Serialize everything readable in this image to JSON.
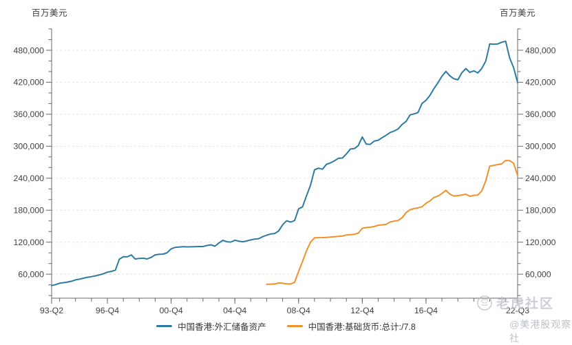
{
  "chart_data": {
    "type": "line",
    "title": "",
    "y_unit": "百万美元",
    "grid": "horizontal-dashed",
    "legend_position": "bottom-center",
    "y_axis": {
      "min": 15000,
      "max": 520000,
      "major_ticks": [
        60000,
        120000,
        180000,
        240000,
        300000,
        360000,
        420000,
        480000
      ],
      "minor_tick_step": 20000,
      "tick_format": "comma"
    },
    "x_axis": {
      "total_quarters": 117,
      "minor_tick_every": 4,
      "minor_tick_offset": 2,
      "tick_labels": [
        {
          "label": "93-Q2",
          "q": 0
        },
        {
          "label": "96-Q4",
          "q": 14
        },
        {
          "label": "00-Q4",
          "q": 30
        },
        {
          "label": "04-Q4",
          "q": 46
        },
        {
          "label": "08-Q4",
          "q": 62
        },
        {
          "label": "12-Q4",
          "q": 78
        },
        {
          "label": "16-Q4",
          "q": 94
        },
        {
          "label": "22-Q3",
          "q": 117
        }
      ]
    },
    "series": [
      {
        "name": "中国香港:外汇储备资产",
        "color": "#2a7aa1",
        "start_q": 0,
        "values": [
          38600,
          40400,
          43000,
          44100,
          45200,
          46800,
          49300,
          50700,
          52500,
          54200,
          55400,
          56900,
          58600,
          60700,
          63800,
          65300,
          67600,
          88100,
          92800,
          92500,
          96200,
          88400,
          89600,
          89900,
          88600,
          91600,
          96200,
          97300,
          97600,
          100300,
          107500,
          110200,
          110900,
          111500,
          111200,
          111300,
          111600,
          111900,
          111900,
          113800,
          115100,
          112500,
          118400,
          123500,
          120800,
          120300,
          123600,
          121900,
          120800,
          122300,
          124300,
          125800,
          126600,
          130400,
          133200,
          135400,
          136300,
          141000,
          152700,
          160200,
          157700,
          160600,
          182500,
          186300,
          207000,
          226800,
          255800,
          258800,
          256800,
          266100,
          268700,
          272600,
          277400,
          277800,
          285400,
          294700,
          295500,
          301200,
          317300,
          304000,
          303500,
          309600,
          311200,
          316200,
          320700,
          325800,
          328500,
          332500,
          340800,
          346500,
          358800,
          360800,
          363200,
          380200,
          386200,
          395500,
          408200,
          419000,
          431400,
          440300,
          431900,
          426500,
          424600,
          437900,
          445600,
          438500,
          441300,
          437500,
          445900,
          459700,
          491800,
          491200,
          491900,
          495100,
          496900,
          465700,
          447200,
          419200
        ]
      },
      {
        "name": "中国香港:基础货币:总计:/7.8",
        "color": "#f39027",
        "start_q": 54,
        "values": [
          41000,
          41300,
          41600,
          43500,
          42900,
          42000,
          41500,
          44900,
          65000,
          84000,
          104000,
          120000,
          128300,
          128500,
          128600,
          129000,
          129500,
          130200,
          130800,
          131500,
          133600,
          134200,
          134800,
          137000,
          146000,
          147500,
          148000,
          149500,
          151800,
          152500,
          153500,
          158000,
          159500,
          160500,
          166000,
          175500,
          181000,
          183000,
          184500,
          186500,
          193000,
          197500,
          204000,
          206500,
          211500,
          217300,
          210000,
          206500,
          207500,
          208500,
          210000,
          206000,
          208000,
          208500,
          216000,
          235000,
          262900,
          264000,
          265500,
          267000,
          273300,
          273000,
          268000,
          245000
        ]
      }
    ],
    "axis_color": "#666666",
    "tick_label_color": "#3f3f3f",
    "grid_color": "#e4e4e4"
  },
  "watermark": {
    "brand": "老虎社区",
    "handle": "@美港股观察社"
  }
}
